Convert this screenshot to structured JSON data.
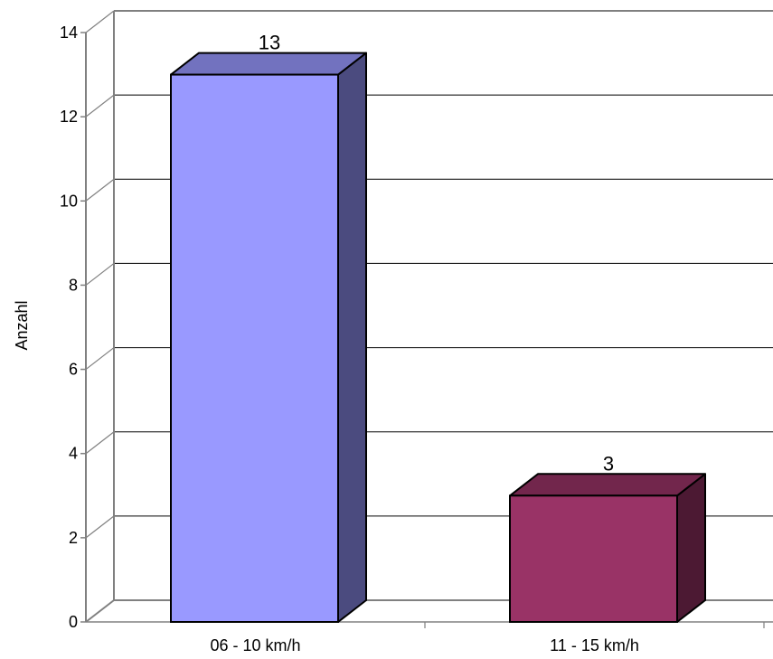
{
  "chart_data": {
    "type": "bar",
    "title": "",
    "xlabel": "",
    "ylabel": "Anzahl",
    "ylim": [
      0,
      14
    ],
    "yticks": [
      0,
      2,
      4,
      6,
      8,
      10,
      12,
      14
    ],
    "categories": [
      "06 - 10 km/h",
      "11 - 15 km/h"
    ],
    "values": [
      13,
      3
    ],
    "data_labels": [
      "13",
      "3"
    ],
    "grid": true,
    "legend": "none",
    "style": "3d",
    "colors": {
      "bars": [
        {
          "front": "#9999FF",
          "side": "#4B4B7F",
          "top": "#7272BF"
        },
        {
          "front": "#993366",
          "side": "#4C1933",
          "top": "#72264C"
        }
      ],
      "grid": "#000000",
      "axis": "#808080"
    }
  }
}
